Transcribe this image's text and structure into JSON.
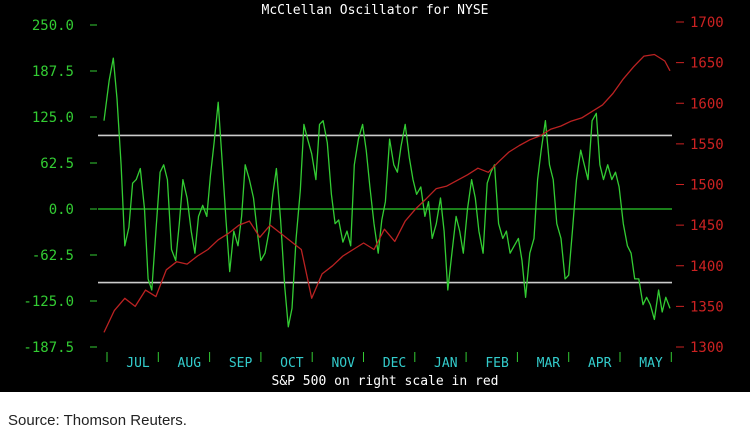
{
  "chart_data": {
    "type": "line",
    "title": "McClellan Oscillator for NYSE",
    "xlabel": "S&P 500 on right scale in red",
    "x_tick_labels": [
      "JUL",
      "AUG",
      "SEP",
      "OCT",
      "NOV",
      "DEC",
      "JAN",
      "FEB",
      "MAR",
      "APR",
      "MAY"
    ],
    "left_axis": {
      "ticks": [
        250.0,
        187.5,
        125.0,
        62.5,
        0.0,
        -62.5,
        -125.0,
        -187.5
      ],
      "tick_labels": [
        "250.0",
        "187.5",
        "125.0",
        "62.5",
        "0.0",
        "-62.5",
        "-125.0",
        "-187.5"
      ],
      "ylim": [
        -187.5,
        250.0
      ],
      "color": "#33cc33"
    },
    "right_axis": {
      "ticks": [
        1700,
        1650,
        1600,
        1550,
        1500,
        1450,
        1400,
        1350,
        1300
      ],
      "tick_labels": [
        "1700",
        "1650",
        "1600",
        "1550",
        "1500",
        "1450",
        "1400",
        "1350",
        "1300"
      ],
      "ylim": [
        1300,
        1700
      ],
      "color": "#cc2222"
    },
    "reference_lines": [
      {
        "value": 100,
        "axis": "left",
        "color": "#cccccc"
      },
      {
        "value": 0,
        "axis": "left",
        "color": "#22aa22"
      },
      {
        "value": -100,
        "axis": "left",
        "color": "#cccccc"
      }
    ],
    "series": [
      {
        "axis": "left",
        "color": "#33cc33",
        "x": [
          0.0,
          0.1,
          0.18,
          0.25,
          0.33,
          0.4,
          0.48,
          0.55,
          0.62,
          0.7,
          0.78,
          0.85,
          0.92,
          1.0,
          1.08,
          1.15,
          1.22,
          1.3,
          1.38,
          1.45,
          1.52,
          1.6,
          1.68,
          1.75,
          1.82,
          1.9,
          1.98,
          2.05,
          2.12,
          2.2,
          2.28,
          2.35,
          2.42,
          2.5,
          2.58,
          2.65,
          2.72,
          2.8,
          2.88,
          2.95,
          3.02,
          3.1,
          3.18,
          3.25,
          3.32,
          3.4,
          3.48,
          3.55,
          3.62,
          3.7,
          3.78,
          3.85,
          3.92,
          4.0,
          4.08,
          4.15,
          4.22,
          4.3,
          4.38,
          4.45,
          4.52,
          4.6,
          4.68,
          4.75,
          4.82,
          4.9,
          4.98,
          5.05,
          5.12,
          5.2,
          5.28,
          5.35,
          5.42,
          5.5,
          5.58,
          5.65,
          5.72,
          5.8,
          5.88,
          5.95,
          6.02,
          6.1,
          6.18,
          6.25,
          6.32,
          6.4,
          6.48,
          6.55,
          6.62,
          6.7,
          6.78,
          6.85,
          6.92,
          7.0,
          7.08,
          7.15,
          7.22,
          7.3,
          7.38,
          7.45,
          7.52,
          7.6,
          7.68,
          7.75,
          7.82,
          7.9,
          7.98,
          8.05,
          8.12,
          8.2,
          8.28,
          8.35,
          8.42,
          8.5,
          8.58,
          8.65,
          8.72,
          8.8,
          8.88,
          8.95,
          9.02,
          9.1,
          9.18,
          9.25,
          9.32,
          9.4,
          9.48,
          9.55,
          9.62,
          9.7,
          9.78,
          9.85,
          9.92,
          10.0,
          10.08,
          10.15,
          10.22,
          10.3,
          10.38,
          10.45,
          10.52,
          10.6,
          10.68,
          10.75,
          10.82,
          10.9
        ],
        "values": [
          120,
          175,
          205,
          150,
          60,
          -50,
          -25,
          35,
          40,
          55,
          0,
          -95,
          -110,
          -30,
          50,
          60,
          40,
          -55,
          -70,
          -20,
          40,
          15,
          -30,
          -60,
          -10,
          5,
          -10,
          45,
          90,
          145,
          60,
          -15,
          -85,
          -30,
          -50,
          -10,
          60,
          40,
          15,
          -30,
          -70,
          -60,
          -30,
          20,
          55,
          -15,
          -105,
          -160,
          -135,
          -40,
          25,
          115,
          95,
          75,
          40,
          115,
          120,
          90,
          20,
          -20,
          -15,
          -45,
          -30,
          -50,
          60,
          95,
          115,
          80,
          30,
          -20,
          -60,
          -15,
          10,
          95,
          60,
          50,
          85,
          115,
          70,
          40,
          20,
          30,
          -10,
          10,
          -40,
          -20,
          15,
          -30,
          -110,
          -60,
          -10,
          -30,
          -60,
          0,
          40,
          15,
          -30,
          -60,
          35,
          50,
          60,
          -20,
          -40,
          -30,
          -60,
          -50,
          -40,
          -70,
          -120,
          -60,
          -40,
          40,
          80,
          120,
          60,
          40,
          -20,
          -40,
          -95,
          -90,
          -30,
          40,
          80,
          60,
          40,
          120,
          130,
          60,
          40,
          60,
          40,
          50,
          30,
          -20,
          -50,
          -60,
          -95,
          -95,
          -130,
          -120,
          -130,
          -150,
          -110,
          -140,
          -120,
          -135
        ],
        "name": ""
      },
      {
        "axis": "right",
        "color": "#bb2222",
        "x": [
          0.0,
          0.2,
          0.4,
          0.6,
          0.8,
          1.0,
          1.2,
          1.4,
          1.6,
          1.8,
          2.0,
          2.2,
          2.4,
          2.6,
          2.8,
          3.0,
          3.2,
          3.4,
          3.6,
          3.8,
          4.0,
          4.2,
          4.4,
          4.6,
          4.8,
          5.0,
          5.2,
          5.4,
          5.6,
          5.8,
          6.0,
          6.2,
          6.4,
          6.6,
          6.8,
          7.0,
          7.2,
          7.4,
          7.6,
          7.8,
          8.0,
          8.2,
          8.4,
          8.6,
          8.8,
          9.0,
          9.2,
          9.4,
          9.6,
          9.8,
          10.0,
          10.2,
          10.4,
          10.6,
          10.8,
          10.9
        ],
        "values": [
          1318,
          1345,
          1360,
          1350,
          1370,
          1362,
          1395,
          1405,
          1402,
          1412,
          1420,
          1432,
          1440,
          1450,
          1455,
          1435,
          1450,
          1440,
          1430,
          1420,
          1360,
          1390,
          1400,
          1412,
          1420,
          1428,
          1420,
          1445,
          1430,
          1455,
          1470,
          1482,
          1495,
          1498,
          1505,
          1512,
          1520,
          1515,
          1528,
          1540,
          1548,
          1555,
          1560,
          1568,
          1572,
          1578,
          1582,
          1590,
          1598,
          1612,
          1630,
          1645,
          1658,
          1660,
          1652,
          1640
        ],
        "name": ""
      }
    ],
    "grid": false
  },
  "footer": {
    "source": "Source:  Thomson Reuters."
  }
}
